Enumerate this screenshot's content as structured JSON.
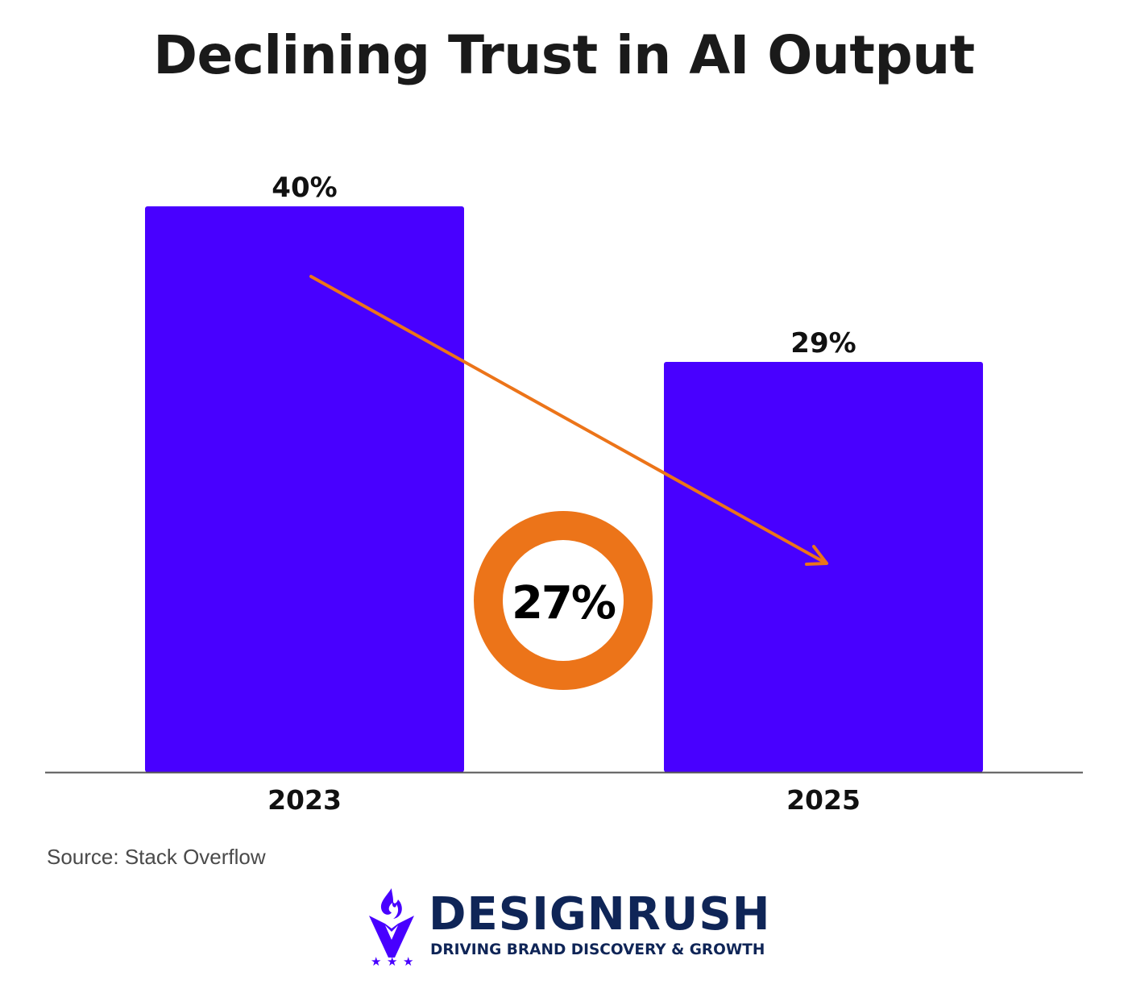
{
  "chart_data": {
    "type": "bar",
    "title": "Declining Trust in AI Output",
    "categories": [
      "2023",
      "2025"
    ],
    "values": [
      40,
      29
    ],
    "value_labels": [
      "40%",
      "29%"
    ],
    "unit": "%",
    "ylim": [
      0,
      40
    ],
    "grid": false,
    "xlabel": "",
    "ylabel": "",
    "bar_color": "#4800ff",
    "annotations": [
      {
        "type": "arrow",
        "from": "2023",
        "to": "2025",
        "direction": "declining",
        "color": "#ec7419"
      },
      {
        "type": "donut-badge",
        "text": "27%",
        "color": "#ec7419"
      }
    ],
    "source": "Source: Stack Overflow"
  },
  "footer": {
    "brand": "DESIGNRUSH",
    "tagline": "DRIVING BRAND DISCOVERY & GROWTH",
    "brand_color": "#0f2557",
    "icon_color": "#4800ff"
  }
}
